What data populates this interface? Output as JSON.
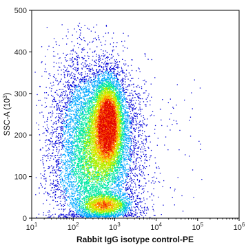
{
  "chart_data": {
    "type": "scatter",
    "subtype": "flow-cytometry density dot plot",
    "xlabel": "Rabbit IgG isotype control-PE",
    "ylabel_base": "SSC-A (10",
    "ylabel_exp": "3",
    "ylabel_close": ")",
    "x_scale": "log",
    "xlim": [
      10,
      1000000
    ],
    "ylim": [
      0,
      500
    ],
    "x_ticks": [
      {
        "base": "10",
        "exp": "1"
      },
      {
        "base": "10",
        "exp": "2"
      },
      {
        "base": "10",
        "exp": "3"
      },
      {
        "base": "10",
        "exp": "4"
      },
      {
        "base": "10",
        "exp": "5"
      },
      {
        "base": "10",
        "exp": "6"
      }
    ],
    "y_ticks": [
      "0",
      "100",
      "200",
      "300",
      "400",
      "500"
    ],
    "grid": false,
    "density_colors": [
      "#0000d8",
      "#00a8ff",
      "#00e8a0",
      "#a0f000",
      "#f0e000",
      "#ff6000",
      "#e00000"
    ],
    "populations": [
      {
        "x_center": 700,
        "y_center": 230,
        "x_spread_decades": 0.18,
        "y_spread": 55,
        "count": 5200,
        "weight": 1.0
      },
      {
        "x_center": 500,
        "y_center": 210,
        "x_spread_decades": 0.45,
        "y_spread": 75,
        "count": 5200,
        "weight": 0.45
      },
      {
        "x_center": 600,
        "y_center": 30,
        "x_spread_decades": 0.35,
        "y_spread": 15,
        "count": 1700,
        "weight": 0.7
      },
      {
        "x_center": 300,
        "y_center": 90,
        "x_spread_decades": 0.55,
        "y_spread": 60,
        "count": 2200,
        "weight": 0.3
      },
      {
        "x_center": 120,
        "y_center": 230,
        "x_spread_decades": 0.4,
        "y_spread": 110,
        "count": 1600,
        "weight": 0.12
      }
    ]
  }
}
